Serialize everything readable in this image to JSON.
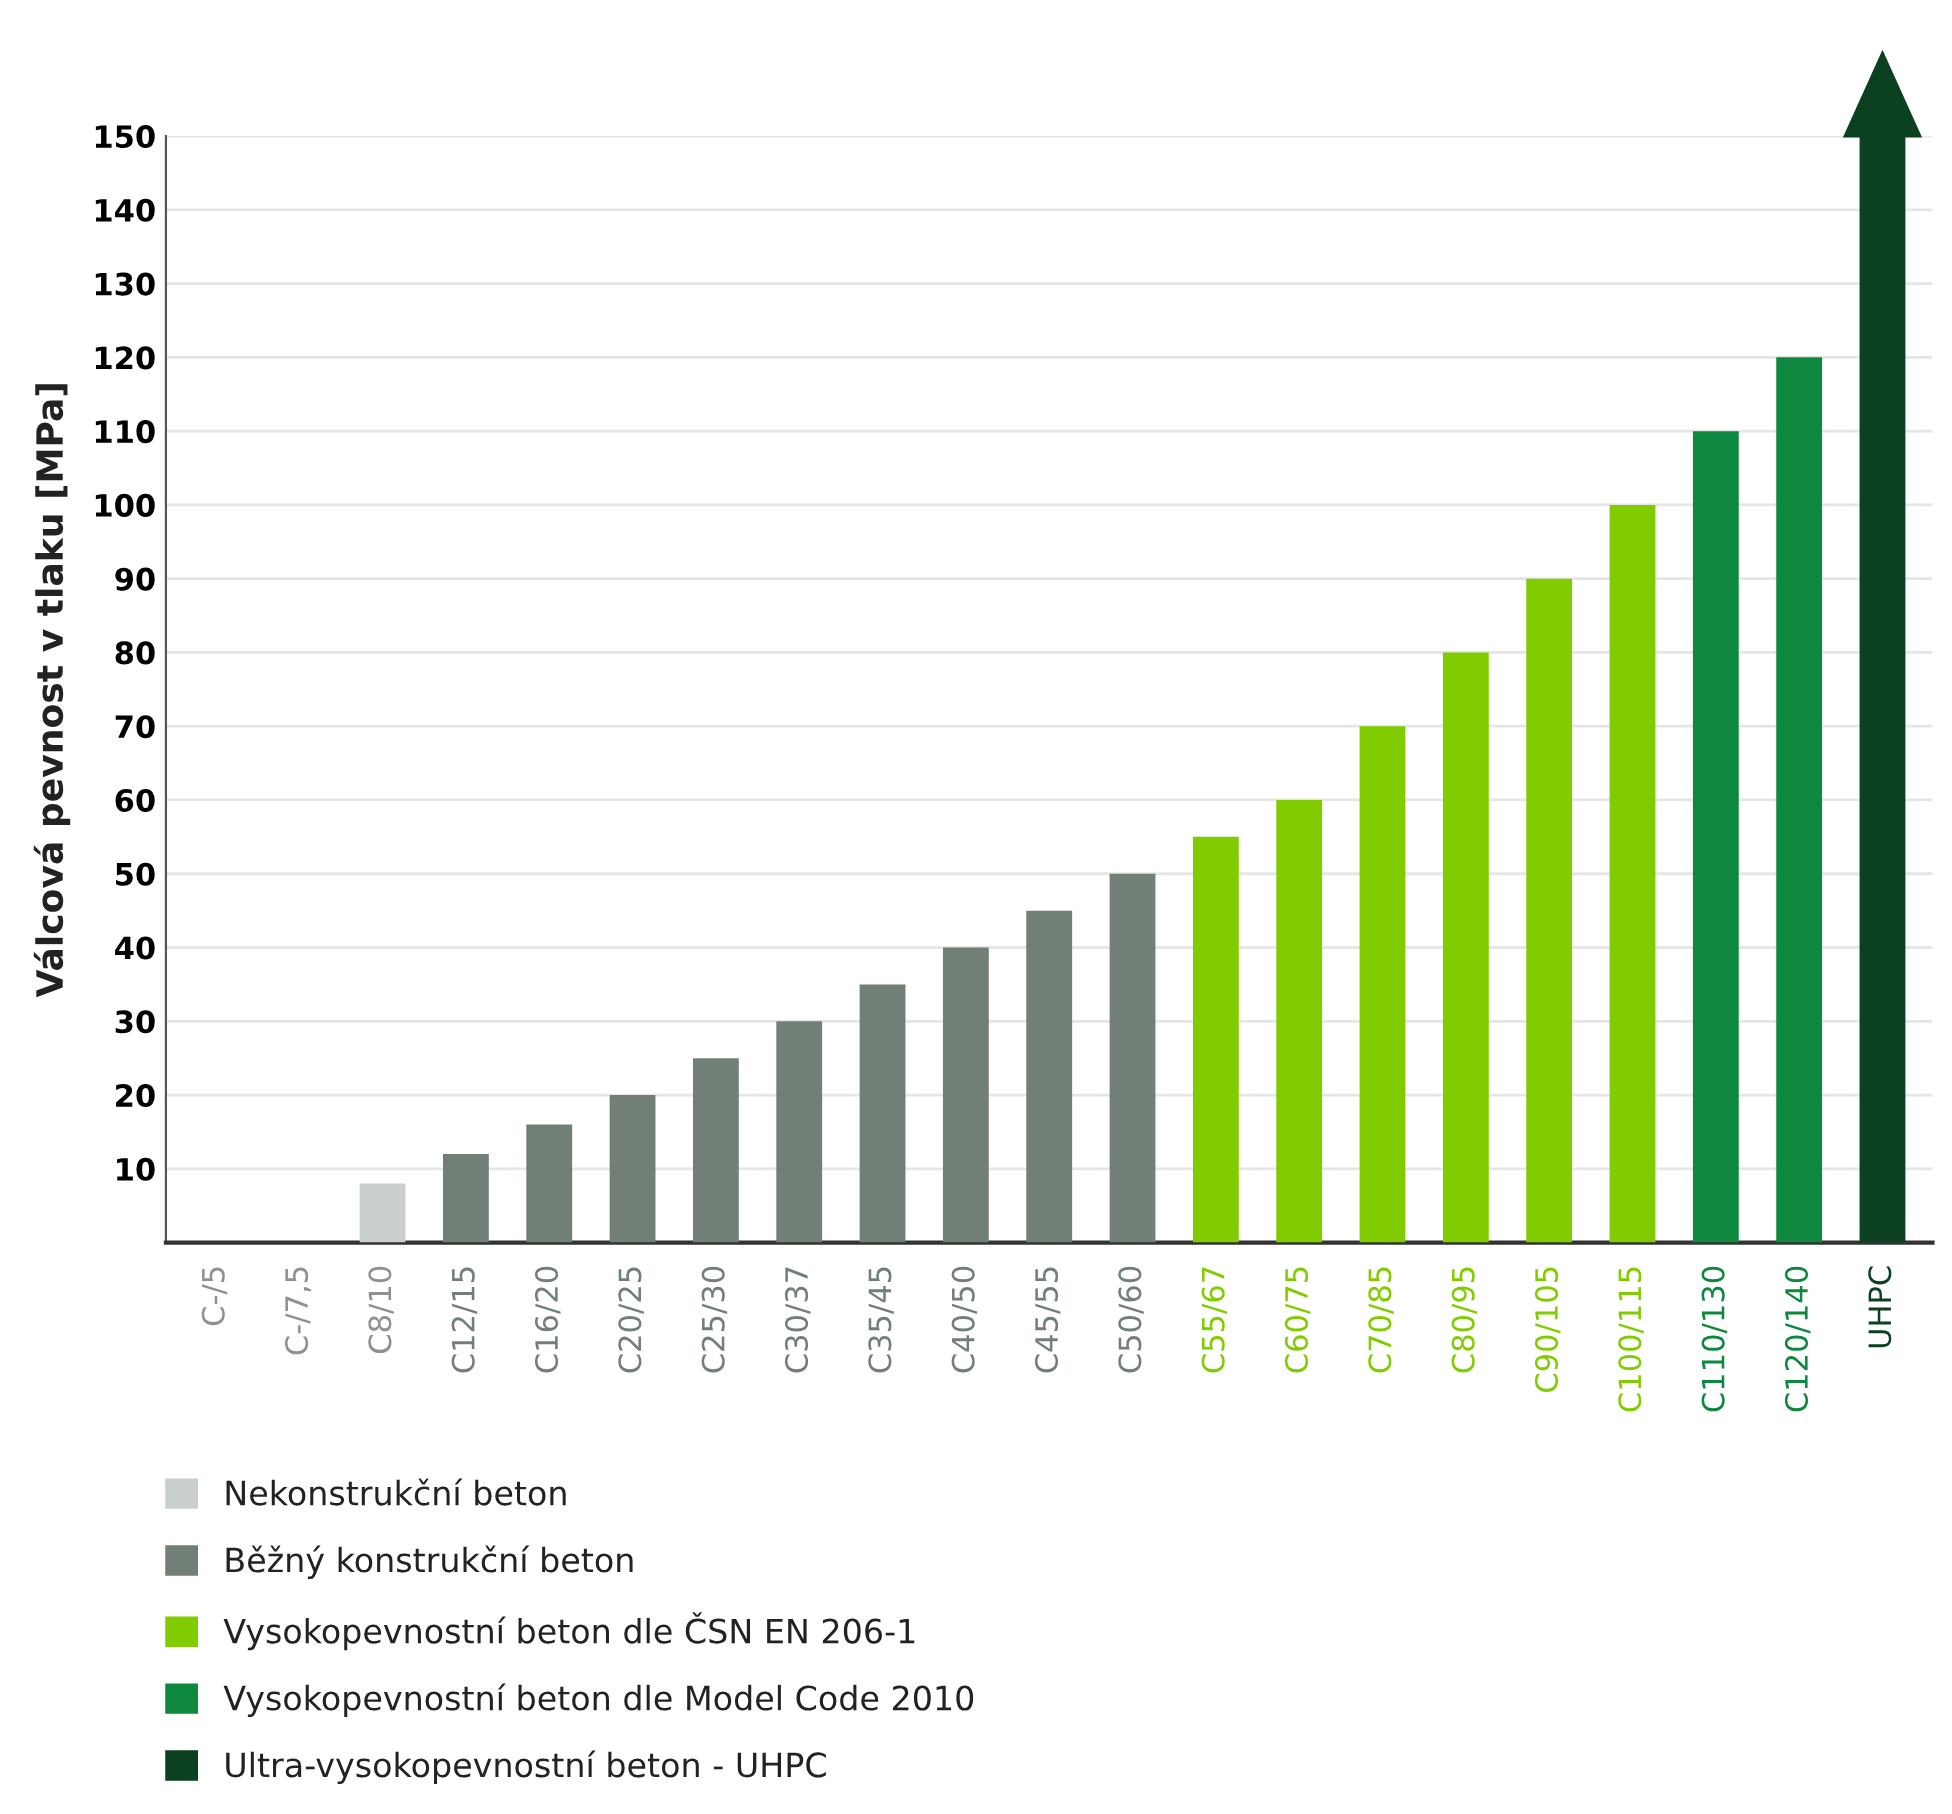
{
  "chart_data": {
    "type": "bar",
    "ylabel": "Válcová pevnost v tlaku [MPa]",
    "categories": [
      "C-/5",
      "C-/7,5",
      "C8/10",
      "C12/15",
      "C16/20",
      "C20/25",
      "C25/30",
      "C30/37",
      "C35/45",
      "C40/50",
      "C45/55",
      "C50/60",
      "C55/67",
      "C60/75",
      "C70/85",
      "C80/95",
      "C90/105",
      "C100/115",
      "C110/130",
      "C120/140",
      "UHPC"
    ],
    "series": [
      {
        "name": "Nekonstrukční beton",
        "color": "#c9d0cc",
        "values": [
          0,
          0,
          8,
          null,
          null,
          null,
          null,
          null,
          null,
          null,
          null,
          null,
          null,
          null,
          null,
          null,
          null,
          null,
          null,
          null,
          null
        ]
      },
      {
        "name": "Běžný konstrukční beton",
        "color": "#717f76",
        "values": [
          null,
          null,
          null,
          12,
          16,
          20,
          25,
          30,
          35,
          40,
          45,
          50,
          null,
          null,
          null,
          null,
          null,
          null,
          null,
          null,
          null
        ]
      },
      {
        "name": "Vysokopevnostní beton dle ČSN EN 206-1",
        "color": "#80cc00",
        "values": [
          null,
          null,
          null,
          null,
          null,
          null,
          null,
          null,
          null,
          null,
          null,
          null,
          55,
          60,
          70,
          80,
          90,
          100,
          null,
          null,
          null
        ]
      },
      {
        "name": "Vysokopevnostní beton dle Model Code 2010",
        "color": "#0d883e",
        "values": [
          null,
          null,
          null,
          null,
          null,
          null,
          null,
          null,
          null,
          null,
          null,
          null,
          null,
          null,
          null,
          null,
          null,
          null,
          110,
          120,
          null
        ]
      },
      {
        "name": "Ultra-vysokopevnostní beton - UHPC",
        "color": "#0b4020",
        "values": [
          null,
          null,
          null,
          null,
          null,
          null,
          null,
          null,
          null,
          null,
          null,
          null,
          null,
          null,
          null,
          null,
          null,
          null,
          null,
          null,
          150
        ]
      }
    ],
    "ylim": [
      0,
      150
    ],
    "yticks": [
      10,
      20,
      30,
      40,
      50,
      60,
      70,
      80,
      90,
      100,
      110,
      120,
      130,
      140,
      150
    ],
    "grid": "y",
    "legend": "bottom"
  }
}
